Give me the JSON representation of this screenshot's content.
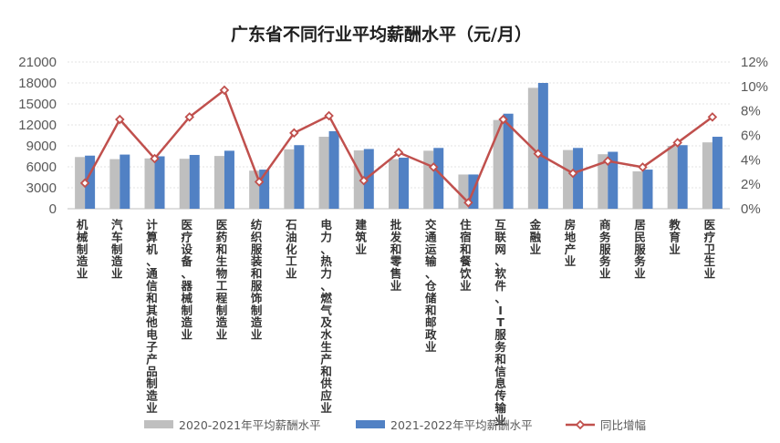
{
  "chart_data": {
    "type": "bar",
    "title": "广东省不同行业平均薪酬水平（元/月）",
    "categories": [
      "机械制造业",
      "汽车制造业",
      "计算机、通信和其他电子产品制造业",
      "医疗设备、器械制造业",
      "医药和生物工程制造业",
      "纺织服装和服饰制造业",
      "石油化工业",
      "电力、热力、燃气及水生产和供应业",
      "建筑业",
      "批发和零售业",
      "交通运输、仓储和邮政业",
      "住宿和餐饮业",
      "互联网、软件、IT服务和信息传输业",
      "金融业",
      "房地产业",
      "商务服务业",
      "居民服务业",
      "教育业",
      "医疗卫生业"
    ],
    "series": [
      {
        "name": "2020-2021年平均薪酬水平",
        "color": "#bfbfbf",
        "axis": "left",
        "values": [
          7400,
          7100,
          7200,
          7150,
          7550,
          5450,
          8500,
          10300,
          8350,
          7100,
          8300,
          4900,
          12700,
          17300,
          8400,
          7800,
          5350,
          9000,
          9500
        ]
      },
      {
        "name": "2021-2022年平均薪酬水平",
        "color": "#5181c4",
        "axis": "left",
        "values": [
          7600,
          7750,
          7500,
          7700,
          8300,
          5600,
          9100,
          11100,
          8550,
          7300,
          8700,
          4900,
          13600,
          18000,
          8700,
          8150,
          5600,
          9100,
          10300
        ]
      },
      {
        "name": "同比增幅",
        "type": "line",
        "color": "#c0504d",
        "axis": "right",
        "values": [
          2.1,
          7.3,
          4.1,
          7.5,
          9.7,
          2.2,
          6.2,
          7.6,
          2.3,
          4.6,
          3.4,
          0.5,
          7.3,
          4.5,
          2.9,
          3.9,
          3.4,
          5.4,
          7.5
        ]
      }
    ],
    "ylim": [
      0,
      21000
    ],
    "yticks": [
      "0",
      "3000",
      "6000",
      "9000",
      "12000",
      "15000",
      "18000",
      "21000"
    ],
    "y2lim": [
      0,
      12
    ],
    "y2ticks": [
      "0%",
      "2%",
      "4%",
      "6%",
      "8%",
      "10%",
      "12%"
    ],
    "legend": "bottom",
    "grid": true
  }
}
